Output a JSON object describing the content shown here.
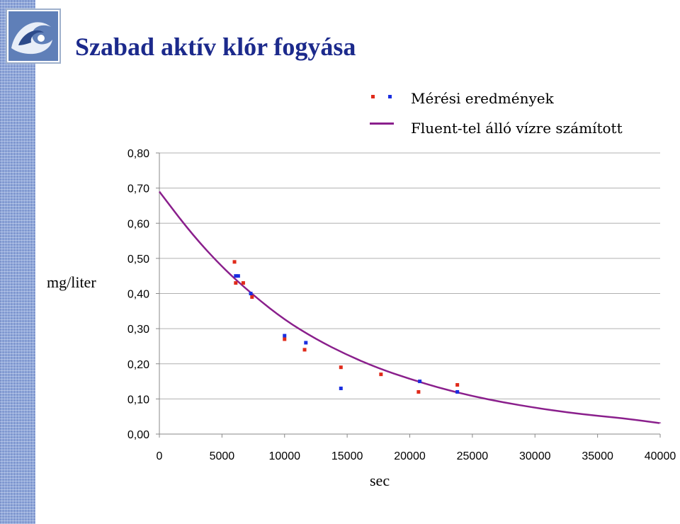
{
  "slide": {
    "title": "Szabad aktív klór fogyása"
  },
  "logo": {
    "icon": "wave-logo-icon"
  },
  "legend": {
    "placement": "top-right",
    "measured_label": "Mérési eredmények",
    "computed_label": "Fluent-tel álló vízre számított"
  },
  "colors": {
    "title": "#1c2a8c",
    "measured_red": "#e02a1a",
    "measured_blue": "#1a2ee0",
    "curve": "#8a1f8c",
    "grid": "#b0b0b0"
  },
  "chart_data": {
    "type": "scatter",
    "xlabel": "sec",
    "ylabel": "mg/liter",
    "xlim": [
      0,
      40000
    ],
    "ylim": [
      0,
      0.8
    ],
    "grid": true,
    "x_ticks": [
      0,
      5000,
      10000,
      15000,
      20000,
      25000,
      30000,
      35000,
      40000
    ],
    "x_tick_labels": [
      "0",
      "5000",
      "10000",
      "15000",
      "20000",
      "25000",
      "30000",
      "35000",
      "40000"
    ],
    "y_ticks": [
      0,
      0.1,
      0.2,
      0.3,
      0.4,
      0.5,
      0.6,
      0.7,
      0.8
    ],
    "y_tick_labels": [
      "0,00",
      "0,10",
      "0,20",
      "0,30",
      "0,40",
      "0,50",
      "0,60",
      "0,70",
      "0,80"
    ],
    "series": [
      {
        "kind": "scatter",
        "color": "#e02a1a",
        "points": [
          [
            6000,
            0.49
          ],
          [
            6100,
            0.43
          ],
          [
            6700,
            0.43
          ],
          [
            7400,
            0.39
          ],
          [
            10000,
            0.27
          ],
          [
            11600,
            0.24
          ],
          [
            14500,
            0.19
          ],
          [
            17700,
            0.17
          ],
          [
            20700,
            0.12
          ],
          [
            23800,
            0.14
          ]
        ]
      },
      {
        "kind": "scatter",
        "color": "#1a2ee0",
        "points": [
          [
            6100,
            0.45
          ],
          [
            6300,
            0.45
          ],
          [
            7300,
            0.4
          ],
          [
            10000,
            0.28
          ],
          [
            11700,
            0.26
          ],
          [
            14500,
            0.13
          ],
          [
            20800,
            0.15
          ],
          [
            23800,
            0.12
          ]
        ]
      },
      {
        "kind": "line",
        "color": "#8a1f8c",
        "x": [
          0,
          2500,
          5000,
          7500,
          10000,
          12500,
          15000,
          17500,
          20000,
          22500,
          25000,
          27500,
          30000,
          32500,
          35000,
          37500,
          40000
        ],
        "y": [
          0.69,
          0.573,
          0.475,
          0.395,
          0.325,
          0.27,
          0.225,
          0.187,
          0.157,
          0.13,
          0.108,
          0.09,
          0.075,
          0.062,
          0.052,
          0.043,
          0.031
        ]
      }
    ]
  }
}
